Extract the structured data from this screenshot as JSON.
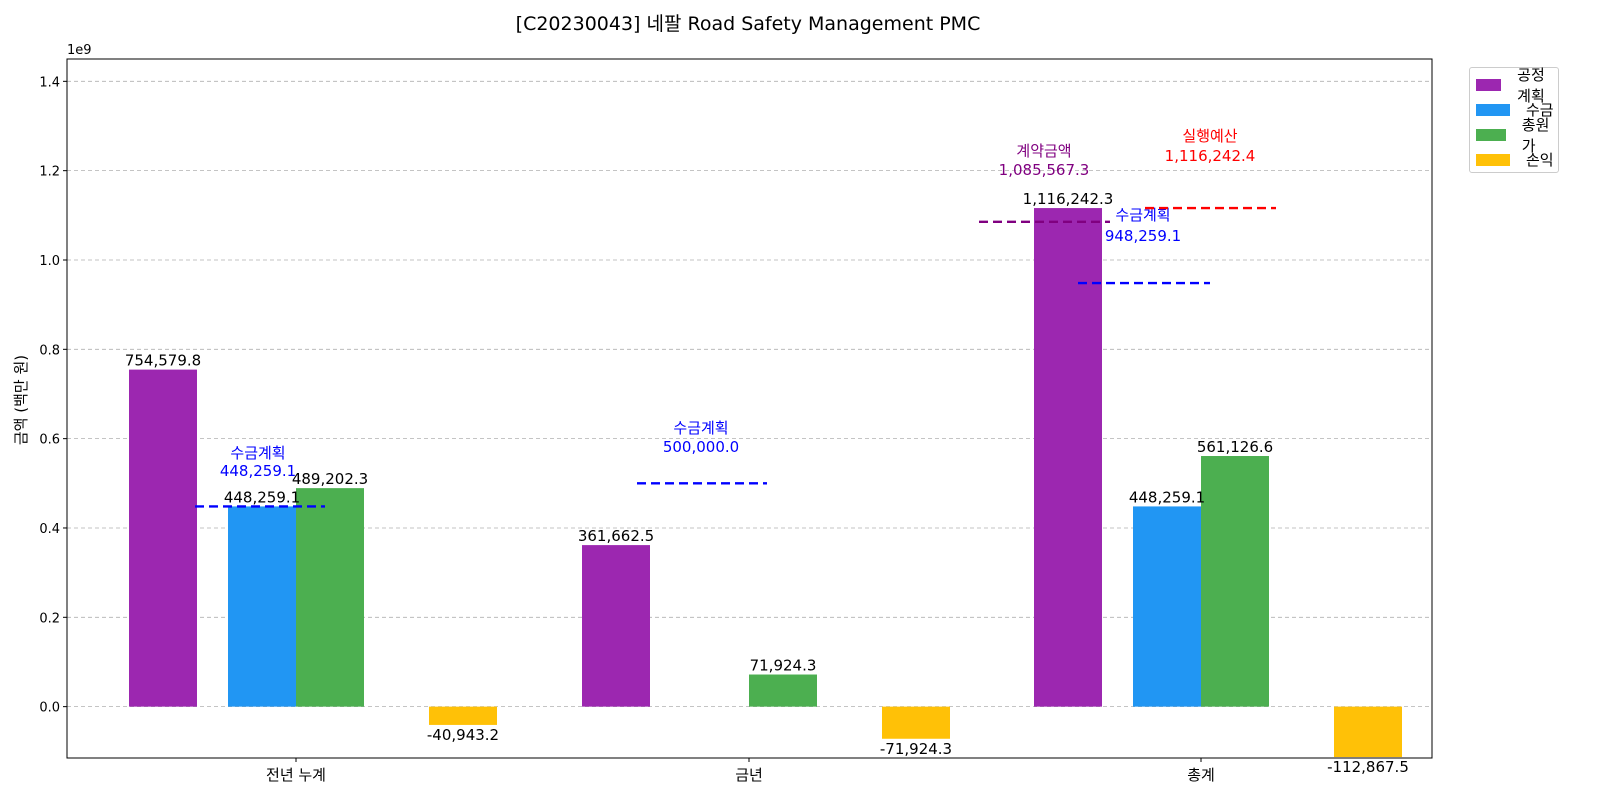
{
  "chart_data": {
    "type": "bar",
    "title": "[C20230043] 네팔 Road Safety Management PMC",
    "ylabel": "금액 (백만 원)",
    "xlabel": "",
    "y_offset_label": "1e9",
    "ylim": [
      -0.115,
      1.45
    ],
    "yticks": [
      0.0,
      0.2,
      0.4,
      0.6,
      0.8,
      1.0,
      1.2,
      1.4
    ],
    "ytick_labels": [
      "0.0",
      "0.2",
      "0.4",
      "0.6",
      "0.8",
      "1.0",
      "1.2",
      "1.4"
    ],
    "grid": true,
    "legend_position": "outside-top-right",
    "categories": [
      "전년 누계",
      "금년",
      "총계"
    ],
    "series": [
      {
        "name": "공정계획",
        "color": "#9c27b0",
        "values": [
          0.7545798,
          0.3616625,
          1.1162423
        ],
        "labels": [
          "754,579.8",
          "361,662.5",
          "1,116,242.3"
        ]
      },
      {
        "name": "수금",
        "color": "#2196f3",
        "values": [
          0.4482591,
          0.0,
          0.4482591
        ],
        "labels": [
          "448,259.1",
          "",
          "448,259.1"
        ]
      },
      {
        "name": "총원가",
        "color": "#4caf50",
        "values": [
          0.4892023,
          0.0719243,
          0.5611266
        ],
        "labels": [
          "489,202.3",
          "71,924.3",
          "561,126.6"
        ]
      },
      {
        "name": "손익",
        "color": "#ffc107",
        "values": [
          -0.0409432,
          -0.0719243,
          -0.1128675
        ],
        "labels": [
          "-40,943.2",
          "-71,924.3",
          "-112,867.5"
        ]
      }
    ],
    "reference_lines": [
      {
        "category_index": 0,
        "value": 0.4482591,
        "color": "#0000ff",
        "title": "수금계획",
        "amount": "448,259.1"
      },
      {
        "category_index": 1,
        "value": 0.5,
        "color": "#0000ff",
        "title": "수금계획",
        "amount": "500,000.0"
      },
      {
        "category_index": 2,
        "value": 0.9482591,
        "color": "#0000ff",
        "title": "수금계획",
        "amount": "948,259.1"
      },
      {
        "category_index": 2,
        "value": 1.0855673,
        "color": "#800080",
        "title": "계약금액",
        "amount": "1,085,567.3"
      },
      {
        "category_index": 2,
        "value": 1.1162424,
        "color": "#ff0000",
        "title": "실행예산",
        "amount": "1,116,242.4"
      }
    ]
  }
}
